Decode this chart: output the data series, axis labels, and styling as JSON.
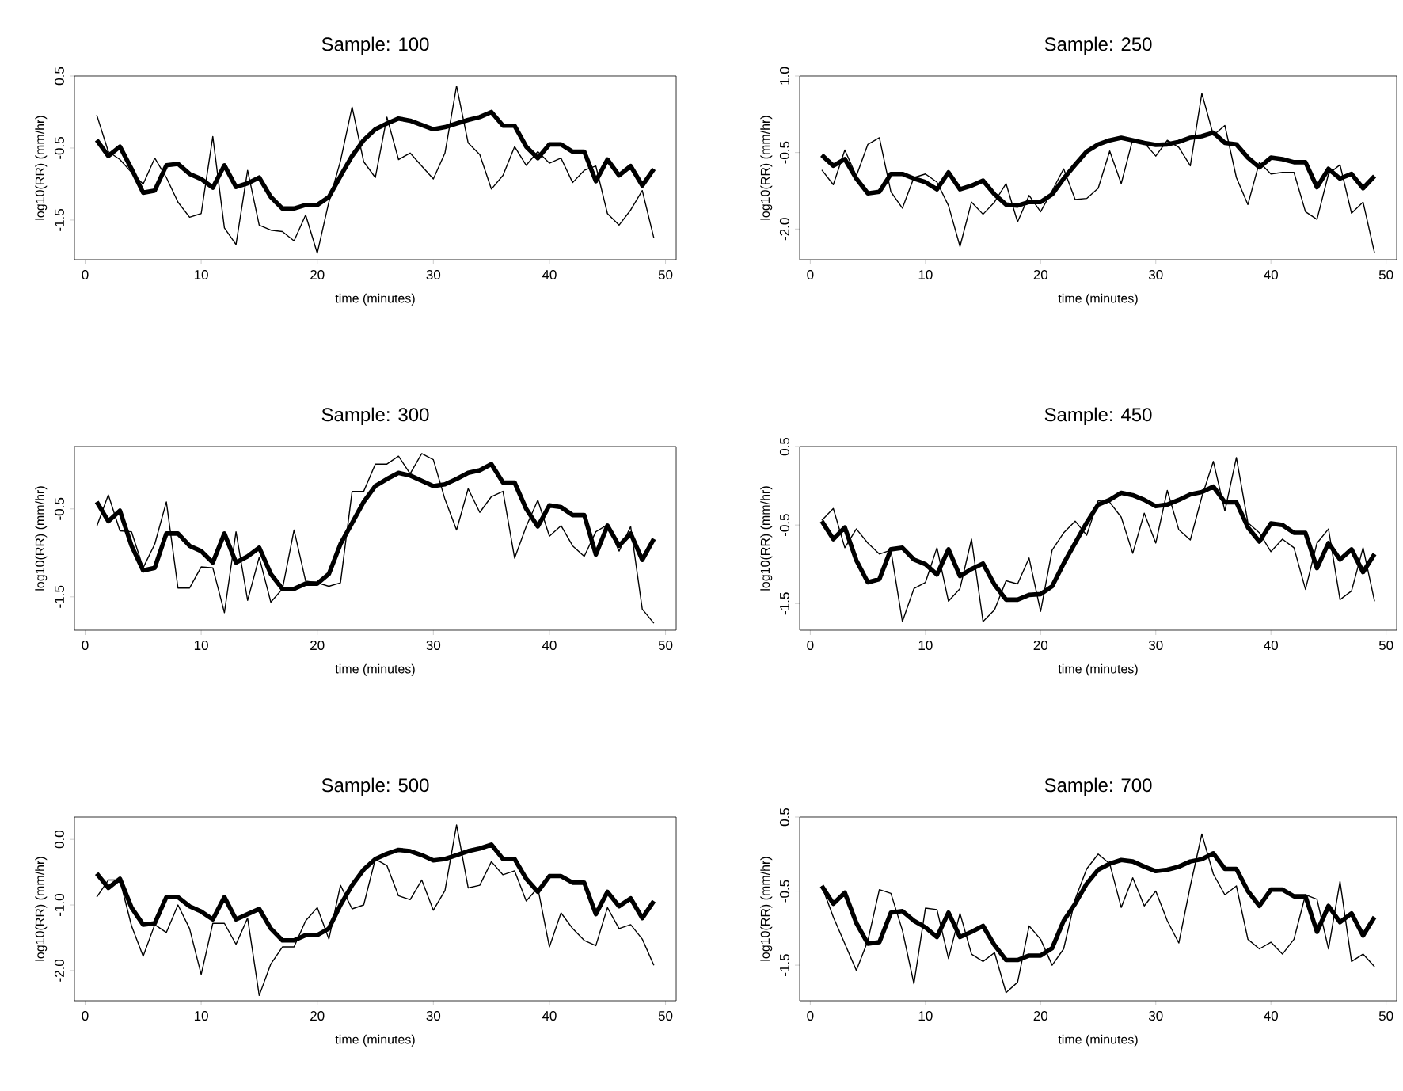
{
  "chart_data": [
    {
      "type": "line",
      "title": "Sample:  100",
      "xlabel": "time (minutes)",
      "ylabel": "log10(RR) (mm/hr)",
      "x": [
        1,
        2,
        3,
        4,
        5,
        6,
        7,
        8,
        9,
        10,
        11,
        12,
        13,
        14,
        15,
        16,
        17,
        18,
        19,
        20,
        21,
        22,
        23,
        24,
        25,
        26,
        27,
        28,
        29,
        30,
        31,
        32,
        33,
        34,
        35,
        36,
        37,
        38,
        39,
        40,
        41,
        42,
        43,
        44,
        45,
        46,
        47,
        48,
        49
      ],
      "xlim": [
        -0.92,
        50.92
      ],
      "xticks": [
        0,
        10,
        20,
        30,
        40,
        50
      ],
      "ylim": [
        -2.05,
        0.5
      ],
      "yticks": [
        -1.5,
        -0.5,
        0.5
      ],
      "series": [
        {
          "color": "#000000",
          "values": [
            -0.04,
            -0.55,
            -0.66,
            -0.84,
            -1.0,
            -0.64,
            -0.91,
            -1.25,
            -1.46,
            -1.41,
            -0.34,
            -1.61,
            -1.84,
            -0.81,
            -1.57,
            -1.64,
            -1.66,
            -1.79,
            -1.43,
            -1.96,
            -1.25,
            -0.68,
            0.07,
            -0.69,
            -0.91,
            -0.07,
            -0.66,
            -0.57,
            -0.75,
            -0.93,
            -0.57,
            0.36,
            -0.43,
            -0.59,
            -1.07,
            -0.88,
            -0.48,
            -0.74,
            -0.55,
            -0.71,
            -0.64,
            -0.98,
            -0.81,
            -0.75,
            -1.41,
            -1.57,
            -1.36,
            -1.09,
            -1.75
          ]
        },
        {
          "color": "#000000",
          "values": [
            -0.39,
            -0.61,
            -0.48,
            -0.79,
            -1.12,
            -1.09,
            -0.74,
            -0.72,
            -0.86,
            -0.93,
            -1.05,
            -0.74,
            -1.04,
            -0.99,
            -0.91,
            -1.18,
            -1.34,
            -1.34,
            -1.29,
            -1.29,
            -1.18,
            -0.89,
            -0.61,
            -0.39,
            -0.24,
            -0.16,
            -0.09,
            -0.12,
            -0.18,
            -0.24,
            -0.21,
            -0.16,
            -0.11,
            -0.07,
            0.0,
            -0.19,
            -0.19,
            -0.48,
            -0.64,
            -0.45,
            -0.45,
            -0.55,
            -0.55,
            -0.96,
            -0.66,
            -0.88,
            -0.75,
            -1.02,
            -0.79
          ]
        }
      ]
    },
    {
      "type": "line",
      "title": "Sample:  250",
      "xlabel": "time (minutes)",
      "ylabel": "log10(RR) (mm/hr)",
      "x": [
        1,
        2,
        3,
        4,
        5,
        6,
        7,
        8,
        9,
        10,
        11,
        12,
        13,
        14,
        15,
        16,
        17,
        18,
        19,
        20,
        21,
        22,
        23,
        24,
        25,
        26,
        27,
        28,
        29,
        30,
        31,
        32,
        33,
        34,
        35,
        36,
        37,
        38,
        39,
        40,
        41,
        42,
        43,
        44,
        45,
        46,
        47,
        48,
        49
      ],
      "xlim": [
        -0.92,
        50.92
      ],
      "xticks": [
        0,
        10,
        20,
        30,
        40,
        50
      ],
      "ylim": [
        -2.6,
        1.0
      ],
      "yticks": [
        {
          "value": -2.0,
          "label": "-2.0"
        },
        -0.5,
        {
          "value": 1.0,
          "label": "1.0"
        }
      ],
      "series": [
        {
          "color": "#000000",
          "values": [
            -0.84,
            -1.13,
            -0.45,
            -0.96,
            -0.34,
            -0.21,
            -1.27,
            -1.59,
            -0.99,
            -0.92,
            -1.08,
            -1.54,
            -2.34,
            -1.47,
            -1.71,
            -1.47,
            -1.11,
            -1.86,
            -1.34,
            -1.66,
            -1.25,
            -0.82,
            -1.42,
            -1.4,
            -1.2,
            -0.47,
            -1.11,
            -0.24,
            -0.31,
            -0.57,
            -0.26,
            -0.4,
            -0.76,
            0.66,
            -0.16,
            0.03,
            -0.99,
            -1.52,
            -0.69,
            -0.92,
            -0.89,
            -0.89,
            -1.66,
            -1.81,
            -0.92,
            -0.74,
            -1.69,
            -1.47,
            -2.47
          ]
        },
        {
          "color": "#000000",
          "values": [
            -0.55,
            -0.76,
            -0.63,
            -1.01,
            -1.3,
            -1.27,
            -0.92,
            -0.92,
            -1.01,
            -1.08,
            -1.22,
            -0.89,
            -1.22,
            -1.15,
            -1.05,
            -1.32,
            -1.52,
            -1.54,
            -1.47,
            -1.47,
            -1.32,
            -1.01,
            -0.74,
            -0.48,
            -0.34,
            -0.26,
            -0.21,
            -0.26,
            -0.31,
            -0.35,
            -0.34,
            -0.29,
            -0.21,
            -0.18,
            -0.11,
            -0.31,
            -0.34,
            -0.6,
            -0.79,
            -0.6,
            -0.63,
            -0.69,
            -0.69,
            -1.18,
            -0.82,
            -1.01,
            -0.92,
            -1.2,
            -0.96
          ]
        }
      ]
    },
    {
      "type": "line",
      "title": "Sample:  300",
      "xlabel": "time (minutes)",
      "ylabel": "log10(RR) (mm/hr)",
      "x": [
        1,
        2,
        3,
        4,
        5,
        6,
        7,
        8,
        9,
        10,
        11,
        12,
        13,
        14,
        15,
        16,
        17,
        18,
        19,
        20,
        21,
        22,
        23,
        24,
        25,
        26,
        27,
        28,
        29,
        30,
        31,
        32,
        33,
        34,
        35,
        36,
        37,
        38,
        39,
        40,
        41,
        42,
        43,
        44,
        45,
        46,
        47,
        48,
        49
      ],
      "xlim": [
        -0.92,
        50.92
      ],
      "xticks": [
        0,
        10,
        20,
        30,
        40,
        50
      ],
      "ylim": [
        -1.88,
        0.21
      ],
      "yticks": [
        -1.5,
        -0.5
      ],
      "series": [
        {
          "color": "#000000",
          "values": [
            -0.7,
            -0.34,
            -0.75,
            -0.76,
            -1.17,
            -0.9,
            -0.42,
            -1.4,
            -1.4,
            -1.16,
            -1.17,
            -1.68,
            -0.76,
            -1.54,
            -1.05,
            -1.56,
            -1.41,
            -0.74,
            -1.32,
            -1.34,
            -1.38,
            -1.34,
            -0.3,
            -0.3,
            0.01,
            0.01,
            0.1,
            -0.1,
            0.13,
            0.06,
            -0.39,
            -0.74,
            -0.27,
            -0.54,
            -0.36,
            -0.3,
            -1.06,
            -0.7,
            -0.4,
            -0.81,
            -0.69,
            -0.92,
            -1.04,
            -0.76,
            -0.68,
            -0.98,
            -0.7,
            -1.64,
            -1.8
          ]
        },
        {
          "color": "#000000",
          "values": [
            -0.42,
            -0.64,
            -0.52,
            -0.92,
            -1.2,
            -1.17,
            -0.78,
            -0.78,
            -0.92,
            -0.98,
            -1.11,
            -0.78,
            -1.11,
            -1.04,
            -0.94,
            -1.24,
            -1.41,
            -1.41,
            -1.35,
            -1.35,
            -1.24,
            -0.9,
            -0.66,
            -0.42,
            -0.24,
            -0.16,
            -0.09,
            -0.12,
            -0.18,
            -0.24,
            -0.22,
            -0.16,
            -0.09,
            -0.06,
            0.01,
            -0.2,
            -0.2,
            -0.5,
            -0.7,
            -0.46,
            -0.48,
            -0.57,
            -0.57,
            -1.02,
            -0.69,
            -0.92,
            -0.78,
            -1.08,
            -0.84
          ]
        }
      ]
    },
    {
      "type": "line",
      "title": "Sample:  450",
      "xlabel": "time (minutes)",
      "ylabel": "log10(RR) (mm/hr)",
      "x": [
        1,
        2,
        3,
        4,
        5,
        6,
        7,
        8,
        9,
        10,
        11,
        12,
        13,
        14,
        15,
        16,
        17,
        18,
        19,
        20,
        21,
        22,
        23,
        24,
        25,
        26,
        27,
        28,
        29,
        30,
        31,
        32,
        33,
        34,
        35,
        36,
        37,
        38,
        39,
        40,
        41,
        42,
        43,
        44,
        45,
        46,
        47,
        48,
        49
      ],
      "xlim": [
        -0.92,
        50.92
      ],
      "xticks": [
        0,
        10,
        20,
        30,
        40,
        50
      ],
      "ylim": [
        -1.84,
        0.5
      ],
      "yticks": [
        -1.5,
        -0.5,
        0.5
      ],
      "series": [
        {
          "color": "#000000",
          "values": [
            -0.44,
            -0.29,
            -0.79,
            -0.55,
            -0.73,
            -0.87,
            -0.82,
            -1.73,
            -1.31,
            -1.23,
            -0.79,
            -1.47,
            -1.31,
            -0.68,
            -1.73,
            -1.58,
            -1.21,
            -1.25,
            -0.92,
            -1.6,
            -0.82,
            -0.6,
            -0.45,
            -0.63,
            -0.19,
            -0.21,
            -0.4,
            -0.86,
            -0.35,
            -0.73,
            -0.06,
            -0.56,
            -0.69,
            -0.14,
            0.31,
            -0.32,
            0.36,
            -0.47,
            -0.6,
            -0.84,
            -0.68,
            -0.79,
            -1.32,
            -0.73,
            -0.55,
            -1.45,
            -1.34,
            -0.79,
            -1.47
          ]
        },
        {
          "color": "#000000",
          "values": [
            -0.45,
            -0.68,
            -0.53,
            -0.95,
            -1.23,
            -1.19,
            -0.81,
            -0.79,
            -0.94,
            -1.0,
            -1.13,
            -0.81,
            -1.15,
            -1.06,
            -0.99,
            -1.26,
            -1.45,
            -1.45,
            -1.39,
            -1.38,
            -1.28,
            -0.99,
            -0.73,
            -0.47,
            -0.24,
            -0.18,
            -0.09,
            -0.12,
            -0.18,
            -0.26,
            -0.24,
            -0.18,
            -0.11,
            -0.08,
            -0.01,
            -0.21,
            -0.21,
            -0.53,
            -0.71,
            -0.48,
            -0.5,
            -0.6,
            -0.6,
            -1.05,
            -0.73,
            -0.94,
            -0.81,
            -1.1,
            -0.87
          ]
        }
      ]
    },
    {
      "type": "line",
      "title": "Sample:  500",
      "xlabel": "time (minutes)",
      "ylabel": "log10(RR) (mm/hr)",
      "x": [
        1,
        2,
        3,
        4,
        5,
        6,
        7,
        8,
        9,
        10,
        11,
        12,
        13,
        14,
        15,
        16,
        17,
        18,
        19,
        20,
        21,
        22,
        23,
        24,
        25,
        26,
        27,
        28,
        29,
        30,
        31,
        32,
        33,
        34,
        35,
        36,
        37,
        38,
        39,
        40,
        41,
        42,
        43,
        44,
        45,
        46,
        47,
        48,
        49
      ],
      "xlim": [
        -0.92,
        50.92
      ],
      "xticks": [
        0,
        10,
        20,
        30,
        40,
        50
      ],
      "ylim": [
        -2.46,
        0.34
      ],
      "yticks": [
        {
          "value": -2.0,
          "label": "-2.0"
        },
        {
          "value": -1.0,
          "label": "-1.0"
        },
        {
          "value": 0.0,
          "label": "0.0"
        }
      ],
      "series": [
        {
          "color": "#000000",
          "values": [
            -0.88,
            -0.62,
            -0.62,
            -1.32,
            -1.78,
            -1.3,
            -1.42,
            -1.0,
            -1.36,
            -2.06,
            -1.28,
            -1.28,
            -1.6,
            -1.2,
            -2.38,
            -1.9,
            -1.64,
            -1.64,
            -1.24,
            -1.04,
            -1.52,
            -0.7,
            -1.06,
            -1.0,
            -0.3,
            -0.4,
            -0.86,
            -0.92,
            -0.62,
            -1.08,
            -0.78,
            0.22,
            -0.74,
            -0.7,
            -0.34,
            -0.54,
            -0.48,
            -0.94,
            -0.74,
            -1.64,
            -1.12,
            -1.36,
            -1.54,
            -1.62,
            -1.04,
            -1.36,
            -1.3,
            -1.52,
            -1.92
          ]
        },
        {
          "color": "#000000",
          "values": [
            -0.52,
            -0.74,
            -0.6,
            -1.04,
            -1.3,
            -1.28,
            -0.88,
            -0.88,
            -1.02,
            -1.1,
            -1.22,
            -0.88,
            -1.22,
            -1.14,
            -1.06,
            -1.36,
            -1.54,
            -1.54,
            -1.46,
            -1.46,
            -1.36,
            -1.0,
            -0.7,
            -0.46,
            -0.3,
            -0.22,
            -0.16,
            -0.18,
            -0.24,
            -0.32,
            -0.3,
            -0.24,
            -0.18,
            -0.14,
            -0.08,
            -0.3,
            -0.3,
            -0.6,
            -0.8,
            -0.56,
            -0.56,
            -0.66,
            -0.66,
            -1.14,
            -0.8,
            -1.02,
            -0.9,
            -1.2,
            -0.94
          ]
        }
      ]
    },
    {
      "type": "line",
      "title": "Sample:  700",
      "xlabel": "time (minutes)",
      "ylabel": "log10(RR) (mm/hr)",
      "x": [
        1,
        2,
        3,
        4,
        5,
        6,
        7,
        8,
        9,
        10,
        11,
        12,
        13,
        14,
        15,
        16,
        17,
        18,
        19,
        20,
        21,
        22,
        23,
        24,
        25,
        26,
        27,
        28,
        29,
        30,
        31,
        32,
        33,
        34,
        35,
        36,
        37,
        38,
        39,
        40,
        41,
        42,
        43,
        44,
        45,
        46,
        47,
        48,
        49
      ],
      "xlim": [
        -0.92,
        50.92
      ],
      "xticks": [
        0,
        10,
        20,
        30,
        40,
        50
      ],
      "ylim": [
        -1.98,
        0.5
      ],
      "yticks": [
        -1.5,
        -0.5,
        0.5
      ],
      "series": [
        {
          "color": "#000000",
          "values": [
            -0.43,
            -0.85,
            -1.21,
            -1.57,
            -1.17,
            -0.48,
            -0.53,
            -1.03,
            -1.75,
            -0.73,
            -0.75,
            -1.41,
            -0.8,
            -1.35,
            -1.45,
            -1.33,
            -1.87,
            -1.73,
            -0.97,
            -1.15,
            -1.5,
            -1.28,
            -0.61,
            -0.2,
            0.0,
            -0.13,
            -0.72,
            -0.32,
            -0.7,
            -0.5,
            -0.9,
            -1.2,
            -0.43,
            0.27,
            -0.27,
            -0.55,
            -0.43,
            -1.15,
            -1.28,
            -1.19,
            -1.35,
            -1.15,
            -0.55,
            -0.61,
            -1.28,
            -0.37,
            -1.45,
            -1.35,
            -1.52
          ]
        },
        {
          "color": "#000000",
          "values": [
            -0.43,
            -0.67,
            -0.52,
            -0.93,
            -1.21,
            -1.19,
            -0.79,
            -0.77,
            -0.9,
            -0.99,
            -1.12,
            -0.79,
            -1.12,
            -1.05,
            -0.97,
            -1.23,
            -1.43,
            -1.43,
            -1.37,
            -1.37,
            -1.27,
            -0.9,
            -0.67,
            -0.4,
            -0.21,
            -0.13,
            -0.08,
            -0.1,
            -0.17,
            -0.23,
            -0.21,
            -0.17,
            -0.1,
            -0.07,
            0.01,
            -0.2,
            -0.2,
            -0.5,
            -0.7,
            -0.48,
            -0.48,
            -0.57,
            -0.57,
            -1.05,
            -0.7,
            -0.92,
            -0.8,
            -1.1,
            -0.85
          ]
        }
      ]
    }
  ]
}
